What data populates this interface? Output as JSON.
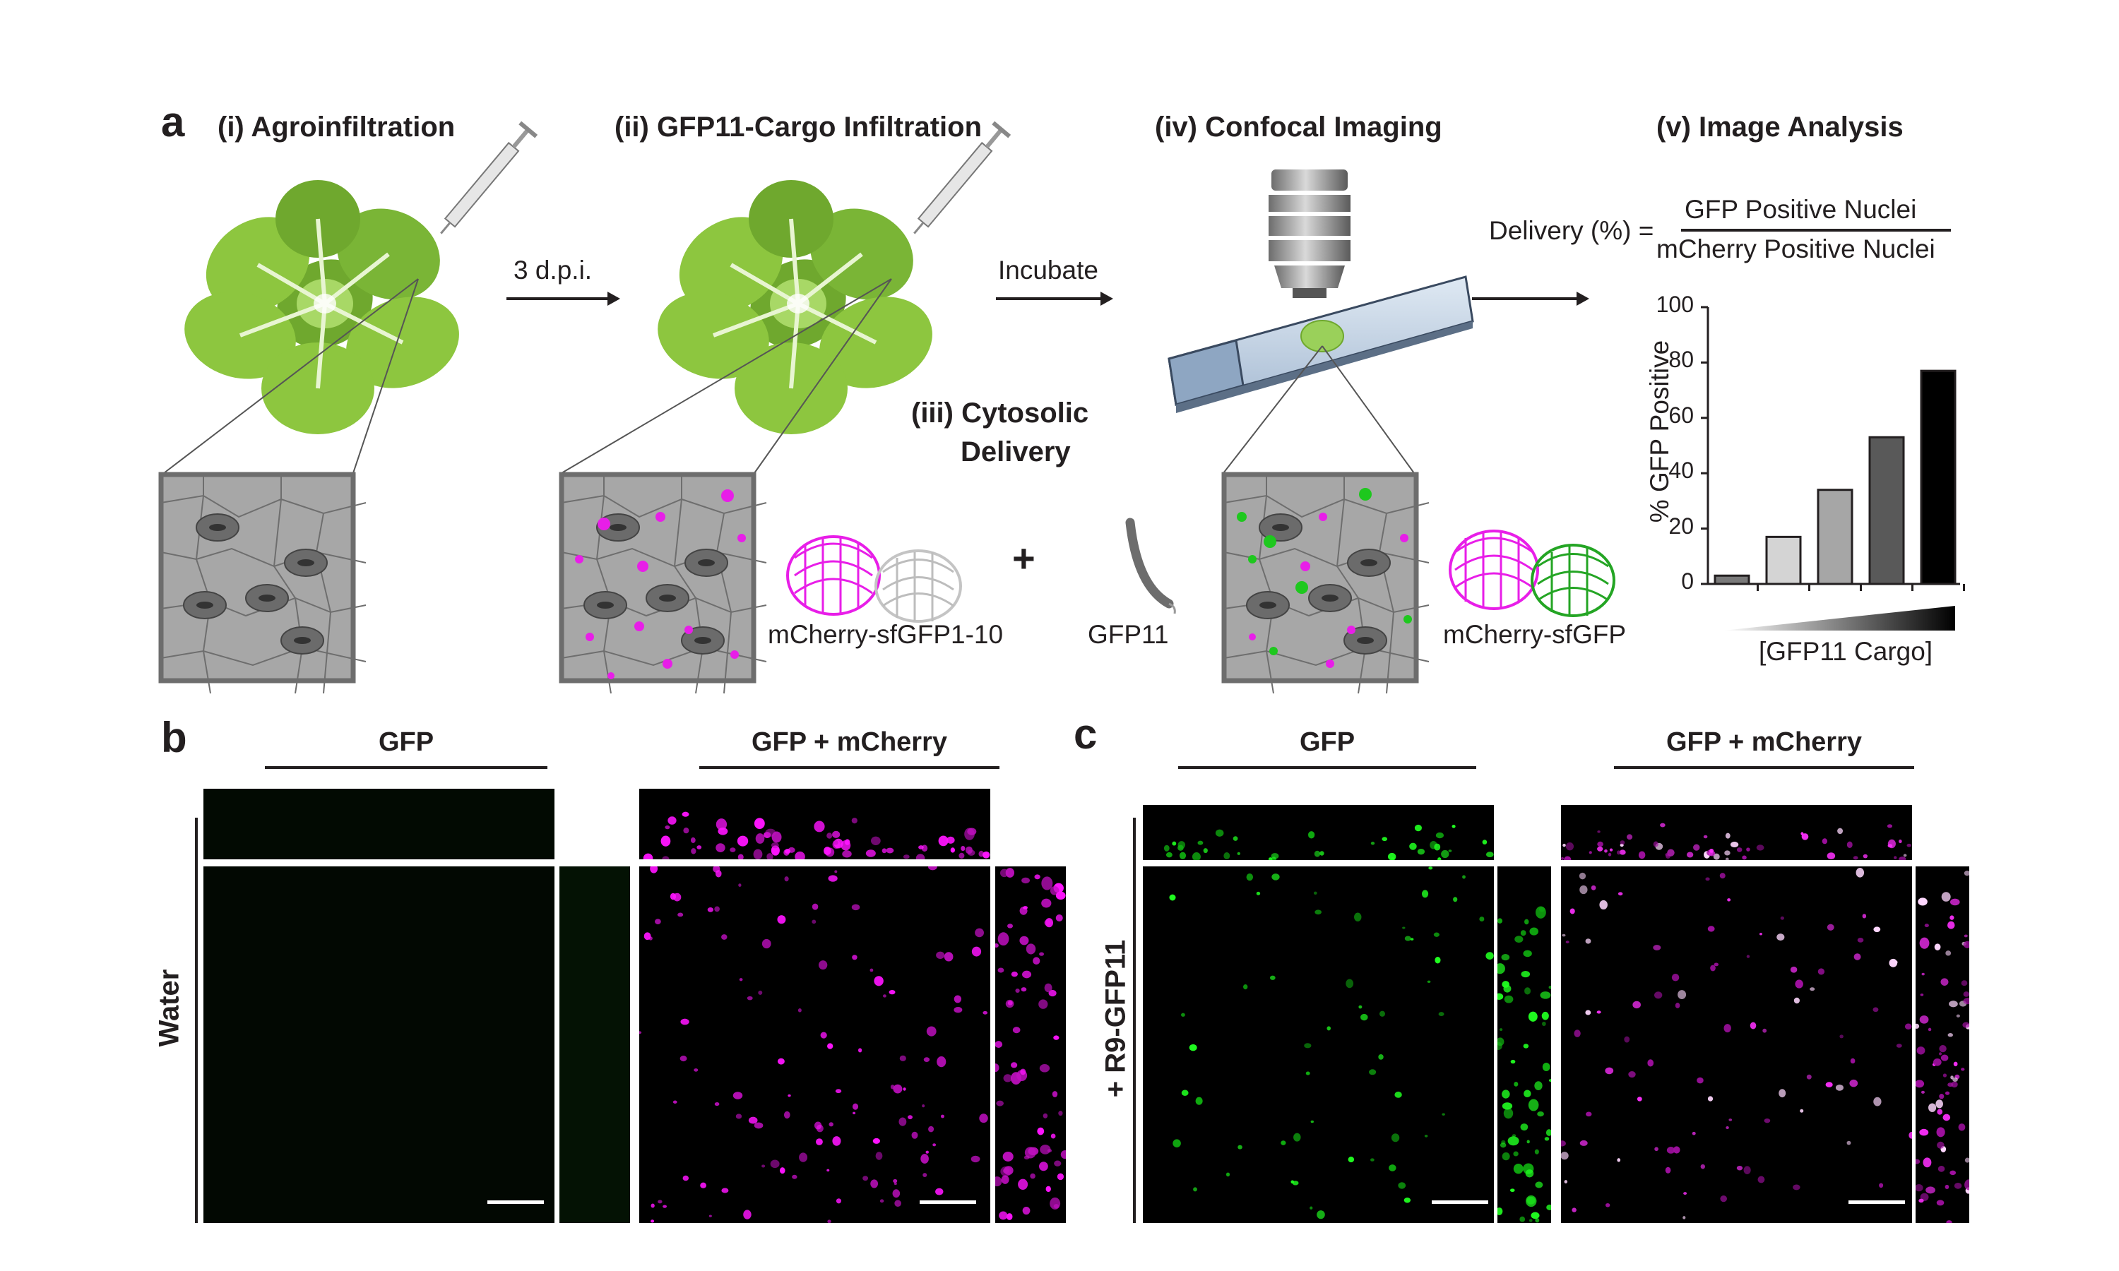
{
  "panel_a": {
    "letter": "a",
    "step1": "(i) Agroinfiltration",
    "step2": "(ii) GFP11-Cargo Infiltration",
    "step3_line1": "(iii) Cytosolic",
    "step3_line2": "Delivery",
    "step4": "(iv) Confocal Imaging",
    "step5": "(v) Image Analysis",
    "arrow1": "3 d.p.i.",
    "arrow2": "Incubate",
    "plus": "+",
    "protein1": "mCherry-sfGFP1-10",
    "peptide": "GFP11",
    "protein2": "mCherry-sfGFP",
    "formula_lhs": "Delivery (%) =",
    "formula_num": "GFP Positive Nuclei",
    "formula_den": "mCherry Positive Nuclei",
    "colors": {
      "leaf": "#8dc63f",
      "leaf_dark": "#6fa82e",
      "magenta": "#e81ee8",
      "green": "#1ec81e",
      "cell_bg": "#a7a7a7",
      "slide": "#9fb4cc"
    }
  },
  "chart_data": {
    "type": "bar",
    "ylabel": "% GFP Positive",
    "xlabel": "[GFP11 Cargo]",
    "ylim": [
      0,
      100
    ],
    "yticks": [
      "0",
      "20",
      "40",
      "60",
      "80",
      "100"
    ],
    "values": [
      3,
      17,
      34,
      53,
      77
    ],
    "bar_colors": [
      "#7a7a7a",
      "#d4d4d4",
      "#a6a6a6",
      "#595959",
      "#000000"
    ]
  },
  "panel_b": {
    "letter": "b",
    "col1": "GFP",
    "col2": "GFP + mCherry",
    "row_label": "Water"
  },
  "panel_c": {
    "letter": "c",
    "col1": "GFP",
    "col2": "GFP + mCherry",
    "row_label": "+ R9-GFP11"
  }
}
